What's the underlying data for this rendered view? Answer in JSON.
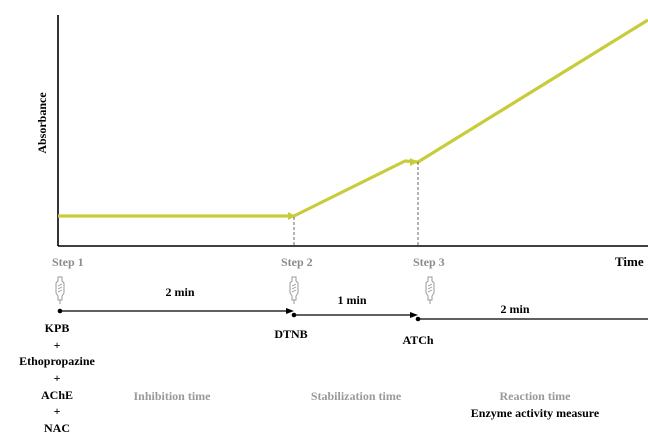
{
  "axes": {
    "y_label": "Absorbance",
    "x_label": "Time"
  },
  "steps": [
    {
      "label": "Step 1",
      "icon": "pipette-icon"
    },
    {
      "label": "Step 2",
      "icon": "pipette-icon"
    },
    {
      "label": "Step 3",
      "icon": "pipette-icon"
    }
  ],
  "durations": [
    "2 min",
    "1 min",
    "2 min"
  ],
  "reagents": {
    "step1": [
      "KPB",
      "+",
      "Ethopropazine",
      "+",
      "AChE",
      "+",
      "NAC"
    ],
    "step2": "DTNB",
    "step3": "ATCh"
  },
  "phases": {
    "inhibition": "Inhibition time",
    "stabilization": "Stabilization time",
    "reaction": "Reaction time",
    "reaction_sub": "Enzyme  activity measure"
  },
  "colors": {
    "curve": "#c8cc3a",
    "step_label": "#8c8c8c",
    "phase_label": "#9a9a9a",
    "axis": "#000000"
  }
}
